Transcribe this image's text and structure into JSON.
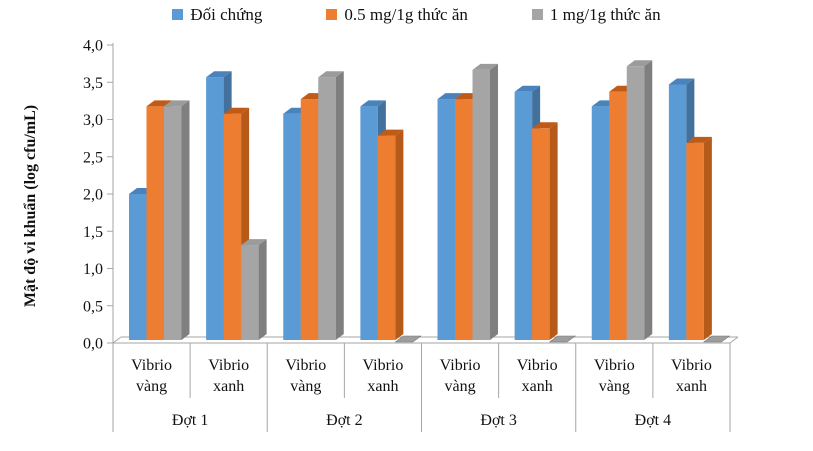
{
  "chart_data": {
    "type": "bar",
    "title": "",
    "ylabel": "Mật độ vi khuẩn (log cfu/mL)",
    "xlabel": "",
    "ylim": [
      0,
      4
    ],
    "ytick_step": 0.5,
    "ytick_labels": [
      "0,0",
      "0,5",
      "1,0",
      "1,5",
      "2,0",
      "2,5",
      "3,0",
      "3,5",
      "4,0"
    ],
    "grid": false,
    "legend_position": "top",
    "effect": "3d-bevel",
    "group_labels": [
      "Đợt 1",
      "Đợt 2",
      "Đợt 3",
      "Đợt 4"
    ],
    "subcategories": [
      "Vibrio vàng",
      "Vibrio xanh"
    ],
    "series": [
      {
        "name": "Đối chứng",
        "color": "#5B9BD5",
        "color_top": "#4A83BC",
        "color_side": "#41719C",
        "values": [
          [
            2.0,
            3.6
          ],
          [
            3.1,
            3.2
          ],
          [
            3.3,
            3.4
          ],
          [
            3.2,
            3.5
          ]
        ]
      },
      {
        "name": "0.5 mg/1g thức ăn",
        "color": "#ED7D31",
        "color_top": "#C05A17",
        "color_side": "#B55A19",
        "values": [
          [
            3.2,
            3.1
          ],
          [
            3.3,
            2.8
          ],
          [
            3.3,
            2.9
          ],
          [
            3.4,
            2.7
          ]
        ]
      },
      {
        "name": "1 mg/1g thức ăn",
        "color": "#A5A5A5",
        "color_top": "#9B9B9B",
        "color_side": "#7F7F7F",
        "values": [
          [
            3.2,
            1.3
          ],
          [
            3.6,
            0
          ],
          [
            3.7,
            0
          ],
          [
            3.75,
            0
          ]
        ]
      }
    ],
    "zero_bar_color": "#9E9E9E",
    "axis_line_color": "#A6A6A6"
  }
}
